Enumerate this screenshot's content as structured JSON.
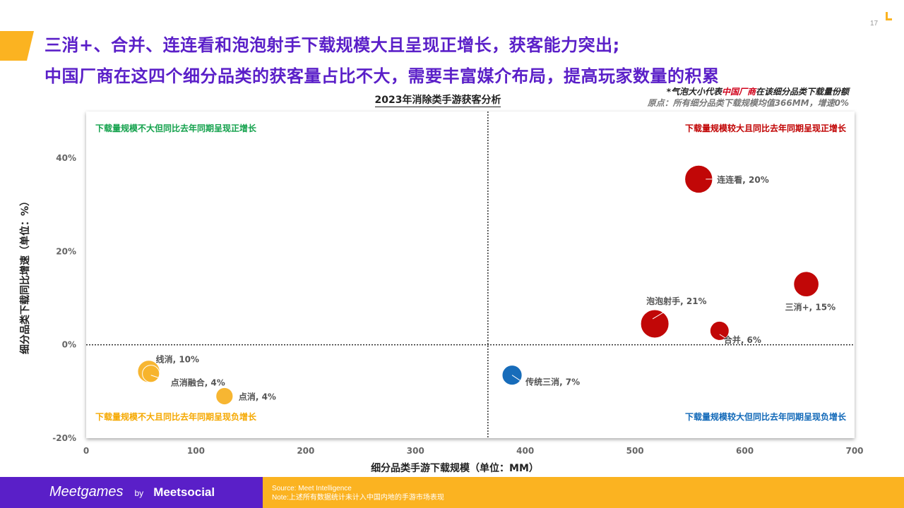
{
  "page": {
    "number": "17",
    "title_lines": [
      "三消+、合并、连连看和泡泡射手下载规模大且呈现正增长，获客能力突出;",
      "中国厂商在这四个细分品类的获客量占比不大，需要丰富媒介布局，提高玩家数量的积累"
    ],
    "note": {
      "prefix": "*气泡大小代表",
      "highlight": "中国厂商",
      "suffix": "在该细分品类下载量份额",
      "origin": "原点：所有细分品类下载规模均值366MM，增速0%"
    }
  },
  "footer": {
    "brand": "Meetgames",
    "by": "by",
    "partner": "Meetsocial",
    "source": "Source: Meet Intelligence",
    "note": "Note:上述所有数据统计未计入中国内地的手游市场表现"
  },
  "colors": {
    "title": "#5a1fc8",
    "footer_left": "#5a1fc8",
    "footer_right": "#fbb321",
    "q_topleft": "#12a14b",
    "q_topright": "#c00000",
    "q_bottomleft": "#f5a800",
    "q_bottomright": "#1068b8",
    "bubble_red": "#c00000",
    "bubble_yellow": "#f7b42c",
    "bubble_blue": "#1068b8"
  },
  "chart_data": {
    "type": "scatter",
    "title": "2023年消除类手游获客分析",
    "xlabel": "细分品类手游下载规模（单位：MM）",
    "ylabel": "细分品类下载同比增速（单位：%）",
    "xlim": [
      0,
      700
    ],
    "ylim": [
      -20,
      50
    ],
    "xticks": [
      0,
      100,
      200,
      300,
      400,
      500,
      600,
      700
    ],
    "yticks": [
      -20,
      0,
      20,
      40
    ],
    "ytick_labels": [
      "-20%",
      "0%",
      "20%",
      "40%"
    ],
    "origin": {
      "x": 366,
      "y": 0
    },
    "size_meaning": "中国厂商在该细分品类下载量份额",
    "quadrants": [
      {
        "position": "top-left",
        "label": "下载量规模不大但同比去年同期呈现正增长",
        "color": "#12a14b"
      },
      {
        "position": "top-right",
        "label": "下载量规模较大且同比去年同期呈现正增长",
        "color": "#c00000"
      },
      {
        "position": "bottom-left",
        "label": "下载量规模不大且同比去年同期呈现负增长",
        "color": "#f5a800"
      },
      {
        "position": "bottom-right",
        "label": "下载量规模较大但同比去年同期呈现负增长",
        "color": "#1068b8"
      }
    ],
    "points": [
      {
        "name": "连连看",
        "label": "连连看, 20%",
        "x": 558,
        "y": 35.5,
        "share": 20,
        "color": "#c00000"
      },
      {
        "name": "三消+",
        "label": "三消+, 15%",
        "x": 656,
        "y": 13,
        "share": 15,
        "color": "#c00000"
      },
      {
        "name": "泡泡射手",
        "label": "泡泡射手, 21%",
        "x": 518,
        "y": 4.5,
        "share": 21,
        "color": "#c00000"
      },
      {
        "name": "合并",
        "label": "合并, 6%",
        "x": 577,
        "y": 3,
        "share": 6,
        "color": "#c00000"
      },
      {
        "name": "线消",
        "label": "线消, 10%",
        "x": 57,
        "y": -5.7,
        "share": 10,
        "color": "#f7b42c"
      },
      {
        "name": "点消融合",
        "label": "点消融合, 4%",
        "x": 59,
        "y": -6.2,
        "share": 4,
        "color": "#f7b42c"
      },
      {
        "name": "点消",
        "label": "点消, 4%",
        "x": 126,
        "y": -11,
        "share": 4,
        "color": "#f7b42c"
      },
      {
        "name": "传统三消",
        "label": "传统三消, 7%",
        "x": 388,
        "y": -6.5,
        "share": 7,
        "color": "#1068b8"
      }
    ]
  }
}
